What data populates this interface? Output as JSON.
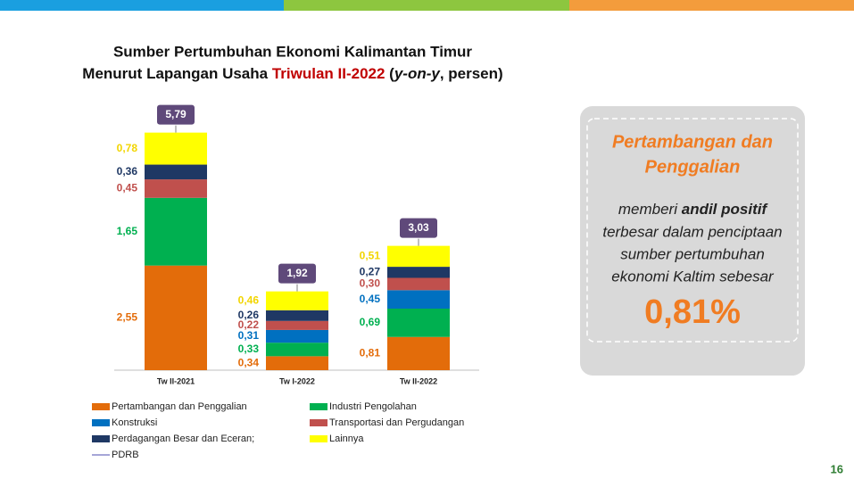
{
  "chart_data": {
    "type": "bar",
    "stacked": true,
    "title": [
      "Sumber Pertumbuhan Ekonomi Kalimantan Timur",
      "Menurut Lapangan Usaha ",
      "Triwulan II-2022",
      " (",
      "y-on-y",
      ", persen)"
    ],
    "categories": [
      "Tw II-2021",
      "Tw I-2022",
      "Tw II-2022"
    ],
    "ylim": [
      0,
      6.5
    ],
    "series": [
      {
        "name": "Pertambangan dan Penggalian",
        "color": "#e36c0a",
        "label_color": "#e36c0a",
        "values": [
          2.55,
          0.34,
          0.81
        ],
        "value_labels": [
          "2,55",
          "0,34",
          "0,81"
        ]
      },
      {
        "name": "Industri Pengolahan",
        "color": "#00b050",
        "label_color": "#00b050",
        "values": [
          1.65,
          0.33,
          0.69
        ],
        "value_labels": [
          "1,65",
          "0,33",
          "0,69"
        ]
      },
      {
        "name": "Konstruksi",
        "color": "#0070c0",
        "label_color": "#0070c0",
        "values": [
          null,
          0.31,
          0.45
        ],
        "value_labels": [
          null,
          "0,31",
          "0,45"
        ]
      },
      {
        "name": "Transportasi dan Pergudangan",
        "color": "#c0504d",
        "label_color": "#c0504d",
        "values": [
          0.45,
          0.22,
          0.3
        ],
        "value_labels": [
          "0,45",
          "0,22",
          "0,30"
        ]
      },
      {
        "name": "Perdagangan Besar dan Eceran;",
        "color": "#1f3864",
        "label_color": "#1f3864",
        "values": [
          0.36,
          0.26,
          0.27
        ],
        "value_labels": [
          "0,36",
          "0,26",
          "0,27"
        ]
      },
      {
        "name": "Lainnya",
        "color": "#ffff00",
        "label_color": "#f2d500",
        "values": [
          0.78,
          0.46,
          0.51
        ],
        "value_labels": [
          "0,78",
          "0,46",
          "0,51"
        ]
      },
      {
        "name": "PDRB",
        "type": "total",
        "color": "#5f497a",
        "legend_color": "#a6a6d8",
        "values": [
          5.79,
          1.92,
          3.03
        ],
        "value_labels": [
          "5,79",
          "1,92",
          "3,03"
        ]
      }
    ]
  },
  "callout": {
    "heading": [
      "Pertambangan dan",
      "Penggalian"
    ],
    "body": [
      [
        "memberi ",
        "andil positif"
      ],
      [
        "terbesar dalam penciptaan"
      ],
      [
        "sumber pertumbuhan"
      ],
      [
        "ekonomi Kaltim sebesar"
      ]
    ],
    "value": "0,81%"
  },
  "page_number": "16"
}
